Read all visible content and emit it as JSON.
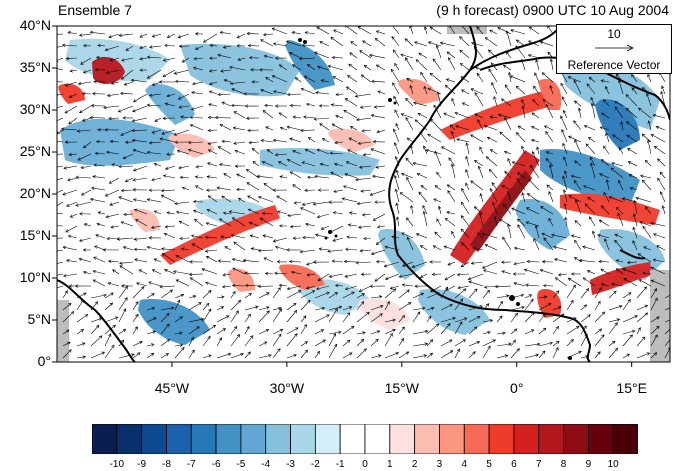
{
  "header": {
    "left_title": "Ensemble 7",
    "right_title": "(9 h forecast) 0900 UTC 10 Aug 2004"
  },
  "map": {
    "lon_range": [
      -60,
      20
    ],
    "lat_range": [
      0,
      40
    ],
    "lat_ticks": [
      "0°",
      "5°N",
      "10°N",
      "15°N",
      "20°N",
      "25°N",
      "30°N",
      "35°N",
      "40°N"
    ],
    "lon_ticks": [
      "45°W",
      "30°W",
      "15°W",
      "0°",
      "15°E"
    ],
    "lon_tick_values": [
      -45,
      -30,
      -15,
      0,
      15
    ],
    "lat_tick_values": [
      0,
      5,
      10,
      15,
      20,
      25,
      30,
      35,
      40
    ]
  },
  "reference_vector": {
    "magnitude": "10",
    "label": "Reference Vector"
  },
  "colorbar": {
    "labels": [
      "-10",
      "-9",
      "-8",
      "-7",
      "-6",
      "-5",
      "-4",
      "-3",
      "-2",
      "-1",
      "0",
      "1",
      "2",
      "3",
      "4",
      "5",
      "6",
      "7",
      "8",
      "9",
      "10"
    ],
    "colors": [
      "#0a1f4f",
      "#08306b",
      "#0d4a8f",
      "#1c62aa",
      "#2878b8",
      "#4292c6",
      "#62a7d3",
      "#86c0dd",
      "#a9d6e8",
      "#d4eef8",
      "#ffffff",
      "#ffffff",
      "#fde0df",
      "#fbbcb2",
      "#fc9680",
      "#f86a55",
      "#ef3b2c",
      "#d42020",
      "#b5161d",
      "#8e0c13",
      "#67000d",
      "#4a0008"
    ]
  }
}
